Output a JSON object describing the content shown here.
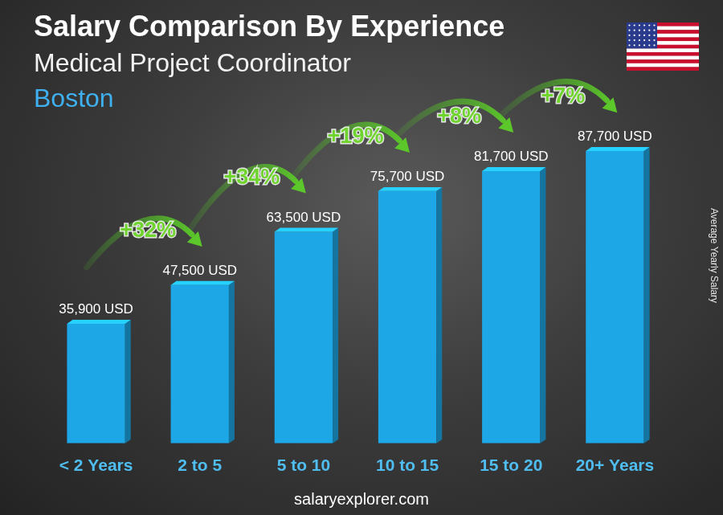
{
  "chart_data": {
    "type": "bar",
    "title": "Salary Comparison By Experience",
    "subtitle": "Medical Project Coordinator",
    "location": "Boston",
    "y_label": "Average Yearly Salary",
    "categories": [
      "< 2 Years",
      "2 to 5",
      "5 to 10",
      "10 to 15",
      "15 to 20",
      "20+ Years"
    ],
    "values": [
      35900,
      47500,
      63500,
      75700,
      81700,
      87700
    ],
    "value_labels": [
      "35,900 USD",
      "47,500 USD",
      "63,500 USD",
      "75,700 USD",
      "81,700 USD",
      "87,700 USD"
    ],
    "data_labels": true,
    "annotations": [
      "+32%",
      "+34%",
      "+19%",
      "+8%",
      "+7%"
    ],
    "color": "#1ea7e6",
    "ylim": [
      0,
      100000
    ],
    "grid": false,
    "tick_labels": "x",
    "source": "salaryexplorer.com"
  }
}
